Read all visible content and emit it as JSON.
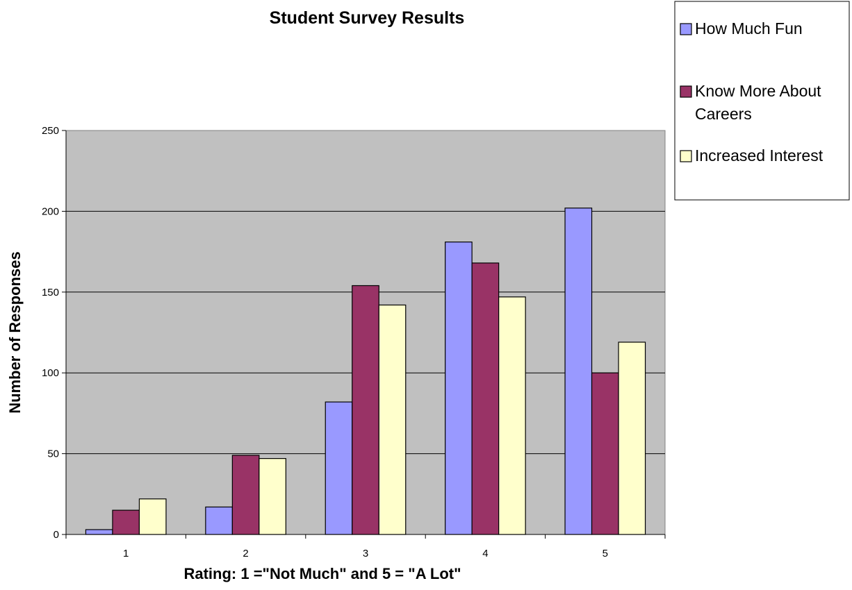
{
  "chart_data": {
    "type": "bar",
    "title": "Student Survey Results",
    "xlabel": "Rating: 1 =\"Not Much\" and 5 = \"A Lot\"",
    "ylabel": "Number of Responses",
    "categories": [
      "1",
      "2",
      "3",
      "4",
      "5"
    ],
    "ylim": [
      0,
      250
    ],
    "yticks": [
      "0",
      "50",
      "100",
      "150",
      "200",
      "250"
    ],
    "grid": true,
    "legend_position": "top-right",
    "series": [
      {
        "name": "How Much Fun",
        "values": [
          3,
          17,
          82,
          181,
          202
        ],
        "color": "#9999ff"
      },
      {
        "name": "Know More About Careers",
        "name_lines": [
          "Know More About",
          "Careers"
        ],
        "values": [
          15,
          49,
          154,
          168,
          100
        ],
        "color": "#993366"
      },
      {
        "name": "Increased Interest",
        "values": [
          22,
          47,
          142,
          147,
          119
        ],
        "color": "#ffffcc"
      }
    ],
    "plot_background": "#c0c0c0"
  }
}
